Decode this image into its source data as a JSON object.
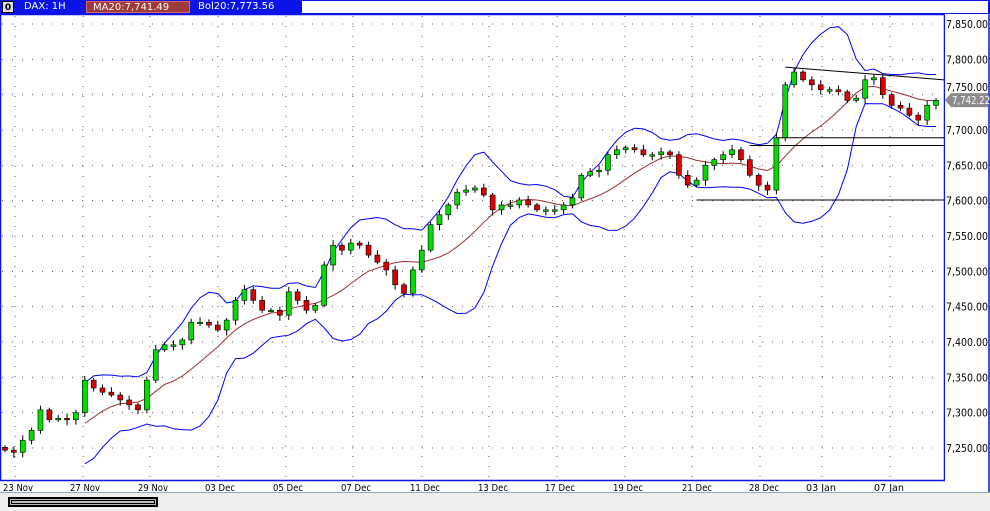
{
  "header": {
    "menu_icon": "0",
    "symbol": "DAX: 1H",
    "ma_label": "MA20:7,741.49",
    "bol_label": "Bol20:7,773.56"
  },
  "colors": {
    "frame": "#0a14e6",
    "up": "#00dd00",
    "down": "#dd0000",
    "ma": "#a03030",
    "bands": "#0000ff",
    "price_tag": "#8c8c8c"
  },
  "chart_data": {
    "type": "candlestick",
    "title": "",
    "ylim": [
      7210,
      7865
    ],
    "y_ticks": [
      "7,250.00",
      "7,300.00",
      "7,350.00",
      "7,400.00",
      "7,450.00",
      "7,500.00",
      "7,550.00",
      "7,600.00",
      "7,650.00",
      "7,700.00",
      "7,750.00",
      "7,800.00",
      "7,850.00"
    ],
    "y_tick_values": [
      7250,
      7300,
      7350,
      7400,
      7450,
      7500,
      7550,
      7600,
      7650,
      7700,
      7750,
      7800,
      7850
    ],
    "x_ticks": [
      "23 Nov",
      "27 Nov",
      "29 Nov",
      "03 Dec",
      "05 Dec",
      "07 Dec",
      "11 Dec",
      "13 Dec",
      "17 Dec",
      "19 Dec",
      "21 Dec",
      "28 Dec",
      "03 Jan",
      "07 Jan"
    ],
    "grid": true,
    "last_price": "7,742.22",
    "last_price_value": 7742.22,
    "indicators": [
      "MA20",
      "Bol20"
    ],
    "closes": [
      7247,
      7244,
      7261,
      7275,
      7304,
      7290,
      7292,
      7290,
      7300,
      7346,
      7335,
      7329,
      7325,
      7318,
      7311,
      7304,
      7346,
      7389,
      7396,
      7396,
      7403,
      7428,
      7428,
      7424,
      7417,
      7431,
      7459,
      7474,
      7459,
      7445,
      7445,
      7438,
      7471,
      7459,
      7445,
      7452,
      7509,
      7537,
      7530,
      7540,
      7537,
      7523,
      7513,
      7502,
      7481,
      7469,
      7502,
      7530,
      7566,
      7580,
      7594,
      7612,
      7615,
      7618,
      7608,
      7587,
      7594,
      7594,
      7601,
      7594,
      7587,
      7587,
      7587,
      7594,
      7604,
      7636,
      7641,
      7643,
      7665,
      7672,
      7675,
      7672,
      7665,
      7665,
      7669,
      7665,
      7636,
      7622,
      7629,
      7650,
      7658,
      7665,
      7672,
      7658,
      7636,
      7622,
      7615,
      7689,
      7764,
      7782,
      7771,
      7764,
      7757,
      7757,
      7754,
      7742,
      7745,
      7771,
      7774,
      7750,
      7735,
      7731,
      7721,
      7714,
      7735,
      7742
    ],
    "lines": [
      {
        "kind": "trend",
        "from_index": 88,
        "to_index": 106,
        "from_price": 7789,
        "to_price": 7771
      },
      {
        "kind": "horizontal",
        "from_index": 87,
        "price": 7689
      },
      {
        "kind": "horizontal",
        "from_index": 84,
        "price": 7678
      },
      {
        "kind": "horizontal",
        "from_index": 78,
        "price": 7601
      }
    ]
  }
}
